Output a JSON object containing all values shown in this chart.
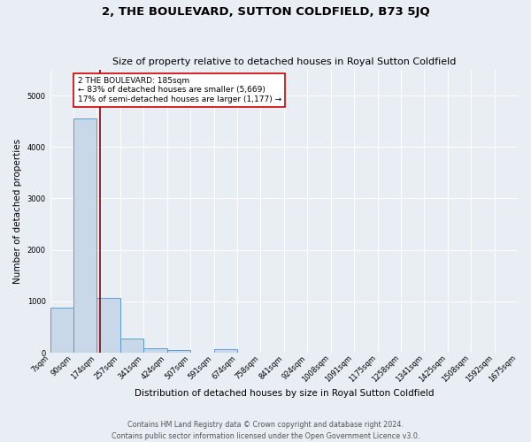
{
  "title": "2, THE BOULEVARD, SUTTON COLDFIELD, B73 5JQ",
  "subtitle": "Size of property relative to detached houses in Royal Sutton Coldfield",
  "xlabel": "Distribution of detached houses by size in Royal Sutton Coldfield",
  "ylabel": "Number of detached properties",
  "footer_line1": "Contains HM Land Registry data © Crown copyright and database right 2024.",
  "footer_line2": "Contains public sector information licensed under the Open Government Licence v3.0.",
  "bin_edges": [
    7,
    90,
    174,
    257,
    341,
    424,
    507,
    591,
    674,
    758,
    841,
    924,
    1008,
    1091,
    1175,
    1258,
    1341,
    1425,
    1508,
    1592,
    1675
  ],
  "bin_labels": [
    "7sqm",
    "90sqm",
    "174sqm",
    "257sqm",
    "341sqm",
    "424sqm",
    "507sqm",
    "591sqm",
    "674sqm",
    "758sqm",
    "841sqm",
    "924sqm",
    "1008sqm",
    "1091sqm",
    "1175sqm",
    "1258sqm",
    "1341sqm",
    "1425sqm",
    "1508sqm",
    "1592sqm",
    "1675sqm"
  ],
  "bar_heights": [
    880,
    4560,
    1060,
    275,
    80,
    55,
    0,
    65,
    0,
    0,
    0,
    0,
    0,
    0,
    0,
    0,
    0,
    0,
    0,
    0
  ],
  "bar_color": "#c8d8e8",
  "bar_edge_color": "#5b9bd5",
  "property_size": 185,
  "vline_color": "#8b0000",
  "annotation_text": "2 THE BOULEVARD: 185sqm\n← 83% of detached houses are smaller (5,669)\n17% of semi-detached houses are larger (1,177) →",
  "annotation_box_color": "#ffffff",
  "annotation_box_edge": "#cc0000",
  "ylim": [
    0,
    5500
  ],
  "background_color": "#e8eef4",
  "grid_color": "#ffffff",
  "title_fontsize": 9.5,
  "subtitle_fontsize": 8,
  "axis_label_fontsize": 7.5,
  "tick_fontsize": 6,
  "annotation_fontsize": 6.5,
  "footer_fontsize": 5.8
}
